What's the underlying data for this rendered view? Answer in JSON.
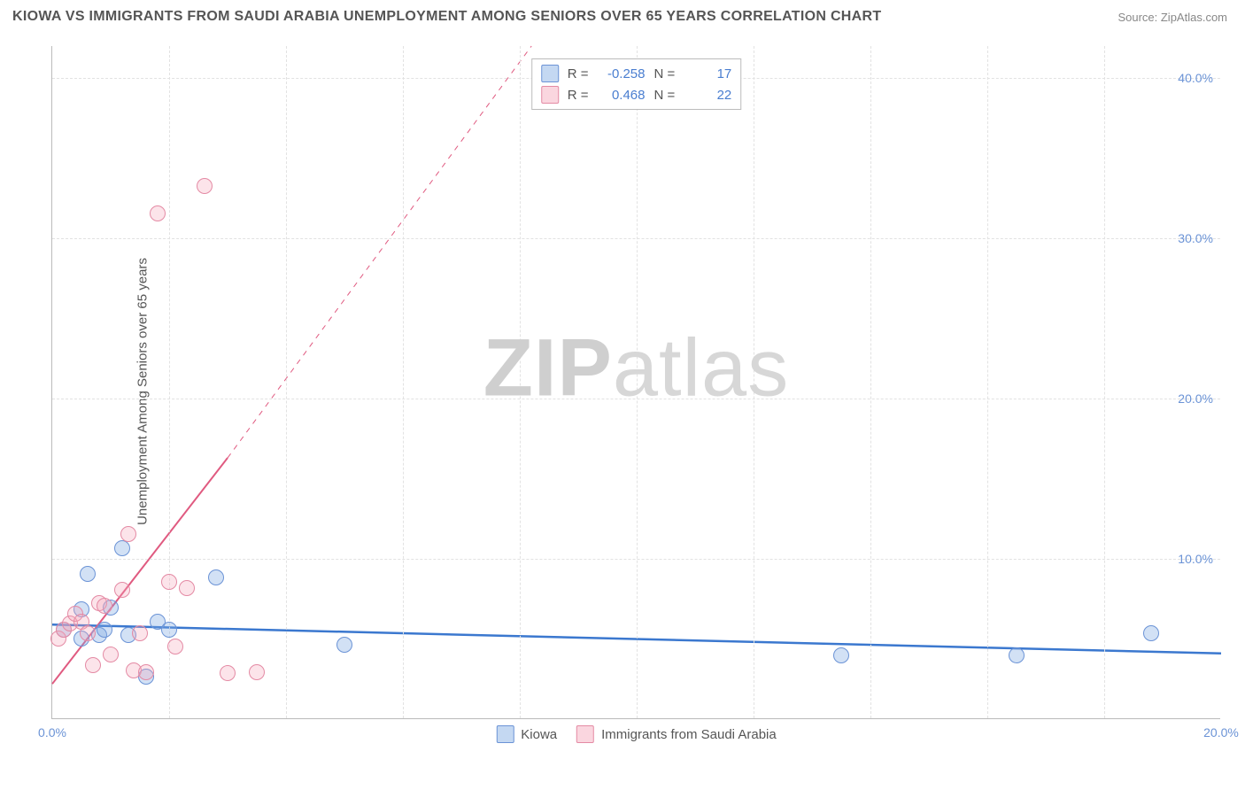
{
  "title": "KIOWA VS IMMIGRANTS FROM SAUDI ARABIA UNEMPLOYMENT AMONG SENIORS OVER 65 YEARS CORRELATION CHART",
  "source": "Source: ZipAtlas.com",
  "ylabel": "Unemployment Among Seniors over 65 years",
  "watermark_bold": "ZIP",
  "watermark_light": "atlas",
  "chart": {
    "type": "scatter",
    "xlim": [
      0,
      20
    ],
    "ylim": [
      0,
      42
    ],
    "yticks": [
      {
        "v": 10,
        "label": "10.0%"
      },
      {
        "v": 20,
        "label": "20.0%"
      },
      {
        "v": 30,
        "label": "30.0%"
      },
      {
        "v": 40,
        "label": "40.0%"
      }
    ],
    "xticks": [
      {
        "v": 0,
        "label": "0.0%"
      },
      {
        "v": 20,
        "label": "20.0%"
      }
    ],
    "xgridlines": [
      2,
      4,
      6,
      8,
      10,
      12,
      14,
      16,
      18
    ],
    "marker_size": 18,
    "colors": {
      "blue_fill": "rgba(125,168,227,0.35)",
      "blue_stroke": "#6b93d6",
      "blue_line": "#3b78cf",
      "pink_fill": "rgba(244,164,184,0.3)",
      "pink_stroke": "#e48aa4",
      "pink_line": "#e05a80",
      "grid": "#e2e2e2",
      "axis": "#bbbbbb",
      "tick_text": "#6b93d6"
    },
    "series": [
      {
        "name": "Kiowa",
        "type": "blue",
        "r": "-0.258",
        "n": "17",
        "points": [
          [
            0.2,
            5.5
          ],
          [
            0.5,
            5.0
          ],
          [
            0.5,
            6.8
          ],
          [
            0.6,
            9.0
          ],
          [
            0.8,
            5.2
          ],
          [
            0.9,
            5.5
          ],
          [
            1.0,
            6.9
          ],
          [
            1.2,
            10.6
          ],
          [
            1.3,
            5.2
          ],
          [
            1.8,
            6.0
          ],
          [
            2.0,
            5.5
          ],
          [
            1.6,
            2.6
          ],
          [
            2.8,
            8.8
          ],
          [
            5.0,
            4.6
          ],
          [
            13.5,
            3.9
          ],
          [
            16.5,
            3.9
          ],
          [
            18.8,
            5.3
          ]
        ],
        "trend": {
          "x1": 0,
          "y1": 5.9,
          "x2": 20,
          "y2": 4.1
        }
      },
      {
        "name": "Immigrants from Saudi Arabia",
        "type": "pink",
        "r": "0.468",
        "n": "22",
        "points": [
          [
            0.1,
            5.0
          ],
          [
            0.2,
            5.5
          ],
          [
            0.3,
            5.9
          ],
          [
            0.4,
            6.5
          ],
          [
            0.5,
            6.0
          ],
          [
            0.6,
            5.3
          ],
          [
            0.7,
            3.3
          ],
          [
            0.8,
            7.2
          ],
          [
            0.9,
            7.0
          ],
          [
            1.0,
            4.0
          ],
          [
            1.2,
            8.0
          ],
          [
            1.3,
            11.5
          ],
          [
            1.4,
            3.0
          ],
          [
            1.5,
            5.3
          ],
          [
            1.6,
            2.9
          ],
          [
            1.8,
            31.5
          ],
          [
            2.0,
            8.5
          ],
          [
            2.1,
            4.5
          ],
          [
            2.3,
            8.1
          ],
          [
            2.6,
            33.2
          ],
          [
            3.0,
            2.8
          ],
          [
            3.5,
            2.9
          ]
        ],
        "trend_solid": {
          "x1": 0,
          "y1": 2.2,
          "x2": 3.0,
          "y2": 16.3
        },
        "trend_dashed": {
          "x1": 3.0,
          "y1": 16.3,
          "x2": 8.2,
          "y2": 42
        }
      }
    ]
  },
  "legend_top": {
    "r_label": "R =",
    "n_label": "N ="
  },
  "legend_bottom": [
    {
      "swatch": "blue",
      "label": "Kiowa"
    },
    {
      "swatch": "pink",
      "label": "Immigrants from Saudi Arabia"
    }
  ]
}
